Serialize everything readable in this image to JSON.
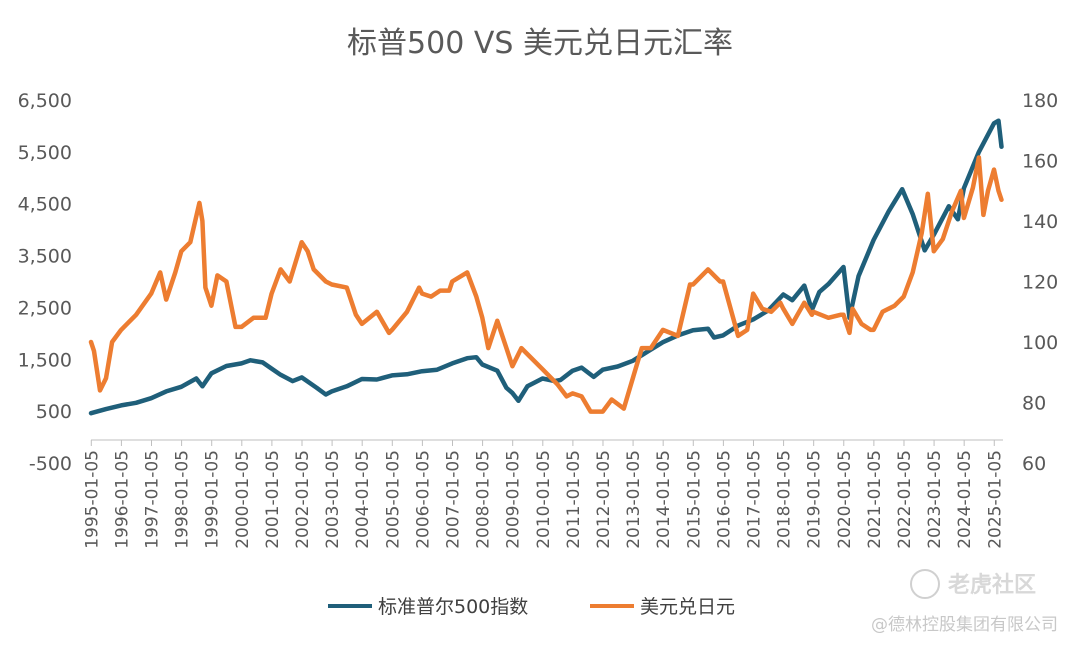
{
  "chart_data": {
    "type": "line",
    "title": "标普500  VS  美元兑日元汇率",
    "y_left": {
      "ticks": [
        "-500",
        "500",
        "1,500",
        "2,500",
        "3,500",
        "4,500",
        "5,500",
        "6,500"
      ],
      "lim": [
        -500,
        6500
      ]
    },
    "y_right": {
      "ticks": [
        "60",
        "80",
        "100",
        "120",
        "140",
        "160",
        "180"
      ],
      "lim": [
        60,
        180
      ]
    },
    "x_ticks": [
      "1995-01-05",
      "1996-01-05",
      "1997-01-05",
      "1998-01-05",
      "1999-01-05",
      "2000-01-05",
      "2001-01-05",
      "2002-01-05",
      "2003-01-05",
      "2004-01-05",
      "2005-01-05",
      "2006-01-05",
      "2007-01-05",
      "2008-01-05",
      "2009-01-05",
      "2010-01-05",
      "2011-01-05",
      "2012-01-05",
      "2013-01-05",
      "2014-01-05",
      "2015-01-05",
      "2016-01-05",
      "2017-01-05",
      "2018-01-05",
      "2019-01-05",
      "2020-01-05",
      "2021-01-05",
      "2022-01-05",
      "2023-01-05",
      "2024-01-05",
      "2025-01-05"
    ],
    "x_range": [
      1995.0,
      2025.3
    ],
    "series": [
      {
        "name": "标准普尔500指数",
        "axis": "left",
        "color": "#1f5f7a",
        "points": [
          [
            1995.0,
            460
          ],
          [
            1995.5,
            540
          ],
          [
            1996.0,
            610
          ],
          [
            1996.5,
            660
          ],
          [
            1997.0,
            750
          ],
          [
            1997.5,
            880
          ],
          [
            1998.0,
            970
          ],
          [
            1998.5,
            1130
          ],
          [
            1998.7,
            980
          ],
          [
            1999.0,
            1230
          ],
          [
            1999.5,
            1370
          ],
          [
            2000.0,
            1420
          ],
          [
            2000.3,
            1480
          ],
          [
            2000.7,
            1440
          ],
          [
            2001.0,
            1320
          ],
          [
            2001.3,
            1200
          ],
          [
            2001.7,
            1080
          ],
          [
            2002.0,
            1150
          ],
          [
            2002.5,
            950
          ],
          [
            2002.8,
            820
          ],
          [
            2003.0,
            880
          ],
          [
            2003.5,
            980
          ],
          [
            2004.0,
            1120
          ],
          [
            2004.5,
            1110
          ],
          [
            2005.0,
            1190
          ],
          [
            2005.5,
            1210
          ],
          [
            2006.0,
            1270
          ],
          [
            2006.5,
            1300
          ],
          [
            2007.0,
            1420
          ],
          [
            2007.5,
            1520
          ],
          [
            2007.8,
            1540
          ],
          [
            2008.0,
            1400
          ],
          [
            2008.5,
            1280
          ],
          [
            2008.8,
            950
          ],
          [
            2009.0,
            850
          ],
          [
            2009.2,
            700
          ],
          [
            2009.5,
            980
          ],
          [
            2010.0,
            1130
          ],
          [
            2010.4,
            1080
          ],
          [
            2010.6,
            1100
          ],
          [
            2011.0,
            1280
          ],
          [
            2011.3,
            1340
          ],
          [
            2011.7,
            1160
          ],
          [
            2012.0,
            1300
          ],
          [
            2012.5,
            1360
          ],
          [
            2013.0,
            1470
          ],
          [
            2013.5,
            1650
          ],
          [
            2014.0,
            1830
          ],
          [
            2014.5,
            1960
          ],
          [
            2015.0,
            2060
          ],
          [
            2015.5,
            2090
          ],
          [
            2015.7,
            1920
          ],
          [
            2016.0,
            1960
          ],
          [
            2016.5,
            2150
          ],
          [
            2017.0,
            2270
          ],
          [
            2017.5,
            2440
          ],
          [
            2018.0,
            2750
          ],
          [
            2018.3,
            2640
          ],
          [
            2018.7,
            2920
          ],
          [
            2018.95,
            2450
          ],
          [
            2019.2,
            2800
          ],
          [
            2019.5,
            2950
          ],
          [
            2020.0,
            3280
          ],
          [
            2020.2,
            2300
          ],
          [
            2020.5,
            3100
          ],
          [
            2021.0,
            3800
          ],
          [
            2021.5,
            4350
          ],
          [
            2021.95,
            4780
          ],
          [
            2022.3,
            4300
          ],
          [
            2022.7,
            3600
          ],
          [
            2023.0,
            3900
          ],
          [
            2023.5,
            4450
          ],
          [
            2023.8,
            4200
          ],
          [
            2024.0,
            4800
          ],
          [
            2024.5,
            5500
          ],
          [
            2025.0,
            6050
          ],
          [
            2025.15,
            6100
          ],
          [
            2025.25,
            5600
          ]
        ]
      },
      {
        "name": "美元兑日元",
        "axis": "right",
        "color": "#ed7d31",
        "points": [
          [
            1995.0,
            100
          ],
          [
            1995.1,
            97
          ],
          [
            1995.3,
            84
          ],
          [
            1995.5,
            88
          ],
          [
            1995.7,
            100
          ],
          [
            1996.0,
            104
          ],
          [
            1996.5,
            109
          ],
          [
            1997.0,
            116
          ],
          [
            1997.3,
            123
          ],
          [
            1997.5,
            114
          ],
          [
            1997.8,
            123
          ],
          [
            1998.0,
            130
          ],
          [
            1998.3,
            133
          ],
          [
            1998.6,
            146
          ],
          [
            1998.7,
            140
          ],
          [
            1998.8,
            118
          ],
          [
            1999.0,
            112
          ],
          [
            1999.2,
            122
          ],
          [
            1999.5,
            120
          ],
          [
            1999.8,
            105
          ],
          [
            2000.0,
            105
          ],
          [
            2000.4,
            108
          ],
          [
            2000.8,
            108
          ],
          [
            2001.0,
            116
          ],
          [
            2001.3,
            124
          ],
          [
            2001.6,
            120
          ],
          [
            2002.0,
            133
          ],
          [
            2002.2,
            130
          ],
          [
            2002.4,
            124
          ],
          [
            2002.8,
            120
          ],
          [
            2003.0,
            119
          ],
          [
            2003.5,
            118
          ],
          [
            2003.8,
            109
          ],
          [
            2004.0,
            106
          ],
          [
            2004.5,
            110
          ],
          [
            2004.9,
            103
          ],
          [
            2005.0,
            104
          ],
          [
            2005.5,
            110
          ],
          [
            2005.9,
            118
          ],
          [
            2006.0,
            116
          ],
          [
            2006.3,
            115
          ],
          [
            2006.6,
            117
          ],
          [
            2006.9,
            117
          ],
          [
            2007.0,
            120
          ],
          [
            2007.5,
            123
          ],
          [
            2007.8,
            115
          ],
          [
            2008.0,
            108
          ],
          [
            2008.2,
            98
          ],
          [
            2008.5,
            107
          ],
          [
            2008.8,
            98
          ],
          [
            2009.0,
            92
          ],
          [
            2009.3,
            98
          ],
          [
            2009.6,
            95
          ],
          [
            2010.0,
            91
          ],
          [
            2010.5,
            86
          ],
          [
            2010.8,
            82
          ],
          [
            2011.0,
            83
          ],
          [
            2011.3,
            82
          ],
          [
            2011.6,
            77
          ],
          [
            2012.0,
            77
          ],
          [
            2012.3,
            81
          ],
          [
            2012.7,
            78
          ],
          [
            2013.0,
            88
          ],
          [
            2013.3,
            98
          ],
          [
            2013.6,
            98
          ],
          [
            2014.0,
            104
          ],
          [
            2014.5,
            102
          ],
          [
            2014.9,
            119
          ],
          [
            2015.0,
            119
          ],
          [
            2015.5,
            124
          ],
          [
            2015.9,
            120
          ],
          [
            2016.0,
            120
          ],
          [
            2016.5,
            102
          ],
          [
            2016.8,
            104
          ],
          [
            2017.0,
            116
          ],
          [
            2017.3,
            111
          ],
          [
            2017.6,
            110
          ],
          [
            2017.9,
            113
          ],
          [
            2018.0,
            111
          ],
          [
            2018.3,
            106
          ],
          [
            2018.7,
            113
          ],
          [
            2018.95,
            109
          ],
          [
            2019.0,
            110
          ],
          [
            2019.5,
            108
          ],
          [
            2019.9,
            109
          ],
          [
            2020.0,
            109
          ],
          [
            2020.2,
            103
          ],
          [
            2020.3,
            111
          ],
          [
            2020.6,
            106
          ],
          [
            2020.9,
            104
          ],
          [
            2021.0,
            104
          ],
          [
            2021.3,
            110
          ],
          [
            2021.7,
            112
          ],
          [
            2022.0,
            115
          ],
          [
            2022.3,
            123
          ],
          [
            2022.6,
            136
          ],
          [
            2022.8,
            149
          ],
          [
            2023.0,
            130
          ],
          [
            2023.3,
            134
          ],
          [
            2023.6,
            143
          ],
          [
            2023.9,
            150
          ],
          [
            2024.0,
            141
          ],
          [
            2024.3,
            151
          ],
          [
            2024.5,
            161
          ],
          [
            2024.65,
            142
          ],
          [
            2024.8,
            150
          ],
          [
            2025.0,
            157
          ],
          [
            2025.15,
            150
          ],
          [
            2025.25,
            147
          ]
        ]
      }
    ],
    "legend_position": "bottom"
  },
  "watermark": {
    "brand": "老虎社区",
    "company": "@德林控股集团有限公司"
  }
}
